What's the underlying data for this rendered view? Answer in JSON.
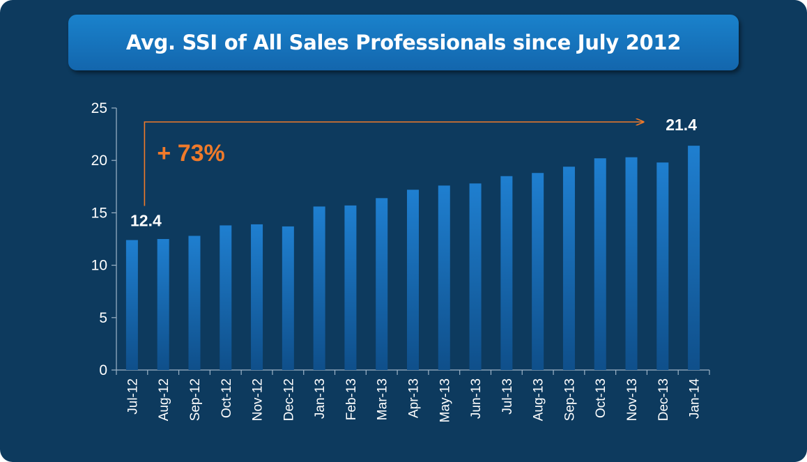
{
  "title": "Avg. SSI of All Sales Professionals since July 2012",
  "colors": {
    "background": "#0d3a5e",
    "title_box": "#1671b8",
    "bar_top": "#1f7fd0",
    "bar_bottom": "#0f4f8a",
    "accent": "#f07a2a",
    "axis": "#9fb5c8",
    "text": "#ffffff"
  },
  "chart_data": {
    "type": "bar",
    "title": "Avg. SSI of All Sales Professionals since July 2012",
    "xlabel": "",
    "ylabel": "",
    "ylim": [
      0,
      25
    ],
    "yticks": [
      0,
      5,
      10,
      15,
      20,
      25
    ],
    "grid": false,
    "categories": [
      "Jul-12",
      "Aug-12",
      "Sep-12",
      "Oct-12",
      "Nov-12",
      "Dec-12",
      "Jan-13",
      "Feb-13",
      "Mar-13",
      "Apr-13",
      "May-13",
      "Jun-13",
      "Jul-13",
      "Aug-13",
      "Sep-13",
      "Oct-13",
      "Nov-13",
      "Dec-13",
      "Jan-14"
    ],
    "values": [
      12.4,
      12.5,
      12.8,
      13.8,
      13.9,
      13.7,
      15.6,
      15.7,
      16.4,
      17.2,
      17.6,
      17.8,
      18.5,
      18.8,
      19.4,
      20.2,
      20.3,
      19.8,
      21.4
    ],
    "annotations": {
      "start_value": "12.4",
      "end_value": "21.4",
      "growth": "+ 73%"
    }
  }
}
